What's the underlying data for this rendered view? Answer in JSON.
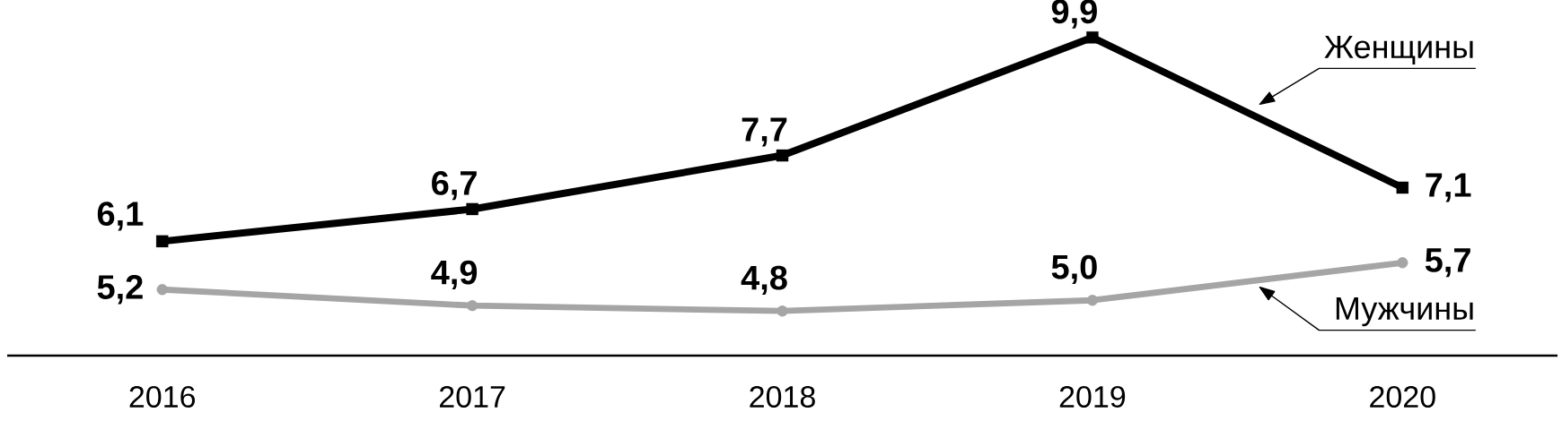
{
  "chart_data": {
    "type": "line",
    "categories": [
      "2016",
      "2017",
      "2018",
      "2019",
      "2020"
    ],
    "tick_labels": "x",
    "series": [
      {
        "name": "Женщины",
        "color": "#000000",
        "marker": "square",
        "values": [
          6.1,
          6.7,
          7.7,
          9.9,
          7.1
        ],
        "value_labels": [
          "6,1",
          "6,7",
          "7,7",
          "9,9",
          "7,1"
        ]
      },
      {
        "name": "Мужчины",
        "color": "#a5a5a5",
        "marker": "circle",
        "values": [
          5.2,
          4.9,
          4.8,
          5.0,
          5.7
        ],
        "value_labels": [
          "5,2",
          "4,9",
          "4,8",
          "5,0",
          "5,7"
        ]
      }
    ]
  }
}
